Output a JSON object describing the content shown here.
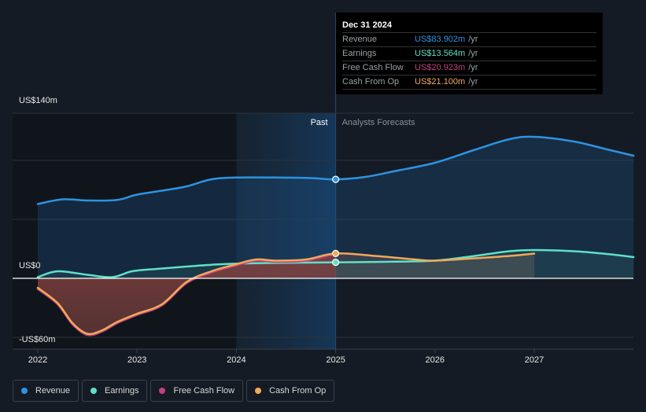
{
  "chart_data": {
    "type": "line",
    "title": "",
    "xlabel": "",
    "ylabel": "",
    "x_ticks": [
      "2022",
      "2023",
      "2024",
      "2025",
      "2026",
      "2027"
    ],
    "y_ticks": [
      {
        "value": 140,
        "label": "US$140m"
      },
      {
        "value": 0,
        "label": "US$0"
      },
      {
        "value": -60,
        "label": "-US$60m"
      }
    ],
    "ylim": [
      -60,
      140
    ],
    "xlim": [
      2022,
      2028
    ],
    "grid": true,
    "legend_position": "bottom-left",
    "past_label": "Past",
    "forecast_label": "Analysts Forecasts",
    "split_x": 2025,
    "highlight_start_x": 2024,
    "series": [
      {
        "name": "Revenue",
        "color": "#2e93e0",
        "points": [
          [
            2022.0,
            63
          ],
          [
            2022.25,
            67
          ],
          [
            2022.5,
            66
          ],
          [
            2022.8,
            66.5
          ],
          [
            2023.0,
            71
          ],
          [
            2023.3,
            75
          ],
          [
            2023.5,
            78
          ],
          [
            2023.75,
            84
          ],
          [
            2024.0,
            85.5
          ],
          [
            2024.4,
            85.5
          ],
          [
            2024.75,
            85
          ],
          [
            2025.0,
            83.9
          ],
          [
            2025.3,
            86
          ],
          [
            2025.6,
            91
          ],
          [
            2026.0,
            98
          ],
          [
            2026.4,
            109
          ],
          [
            2026.75,
            118
          ],
          [
            2027.0,
            120
          ],
          [
            2027.4,
            116
          ],
          [
            2027.75,
            109
          ],
          [
            2028.0,
            104
          ]
        ]
      },
      {
        "name": "Earnings",
        "color": "#5fe0c8",
        "points": [
          [
            2022.0,
            1
          ],
          [
            2022.2,
            6
          ],
          [
            2022.5,
            3
          ],
          [
            2022.75,
            1
          ],
          [
            2022.95,
            6
          ],
          [
            2023.2,
            8
          ],
          [
            2023.5,
            10
          ],
          [
            2023.75,
            11.5
          ],
          [
            2024.0,
            12.5
          ],
          [
            2024.5,
            13.2
          ],
          [
            2025.0,
            13.564
          ],
          [
            2025.5,
            14
          ],
          [
            2026.0,
            15
          ],
          [
            2026.4,
            19
          ],
          [
            2026.75,
            23
          ],
          [
            2027.0,
            24
          ],
          [
            2027.4,
            23
          ],
          [
            2027.75,
            20.5
          ],
          [
            2028.0,
            18
          ]
        ]
      },
      {
        "name": "Free Cash Flow",
        "color": "#c2407f",
        "points": [
          [
            2022.0,
            -9
          ],
          [
            2022.2,
            -22
          ],
          [
            2022.35,
            -39
          ],
          [
            2022.5,
            -48
          ],
          [
            2022.65,
            -45
          ],
          [
            2022.8,
            -38
          ],
          [
            2023.0,
            -31
          ],
          [
            2023.25,
            -23
          ],
          [
            2023.5,
            -4
          ],
          [
            2023.75,
            5
          ],
          [
            2024.0,
            11
          ],
          [
            2024.2,
            15
          ],
          [
            2024.4,
            14
          ],
          [
            2024.7,
            15
          ],
          [
            2025.0,
            20.923
          ]
        ]
      },
      {
        "name": "Cash From Op",
        "color": "#f0a95a",
        "points": [
          [
            2022.0,
            -8
          ],
          [
            2022.2,
            -21
          ],
          [
            2022.35,
            -38
          ],
          [
            2022.5,
            -47
          ],
          [
            2022.65,
            -44
          ],
          [
            2022.8,
            -37
          ],
          [
            2023.0,
            -30
          ],
          [
            2023.25,
            -22
          ],
          [
            2023.5,
            -3
          ],
          [
            2023.75,
            6
          ],
          [
            2024.0,
            12
          ],
          [
            2024.2,
            16
          ],
          [
            2024.4,
            15
          ],
          [
            2024.7,
            16
          ],
          [
            2025.0,
            21.1
          ],
          [
            2025.4,
            19
          ],
          [
            2025.8,
            16
          ],
          [
            2026.0,
            15
          ],
          [
            2026.4,
            17
          ],
          [
            2026.75,
            19
          ],
          [
            2027.0,
            21
          ]
        ]
      }
    ]
  },
  "tooltip": {
    "date": "Dec 31 2024",
    "rows": [
      {
        "name": "Revenue",
        "value": "US$83.902m",
        "unit": "/yr",
        "color": "#2e93e0"
      },
      {
        "name": "Earnings",
        "value": "US$13.564m",
        "unit": "/yr",
        "color": "#5fe0c8"
      },
      {
        "name": "Free Cash Flow",
        "value": "US$20.923m",
        "unit": "/yr",
        "color": "#c2407f"
      },
      {
        "name": "Cash From Op",
        "value": "US$21.100m",
        "unit": "/yr",
        "color": "#f0a95a"
      }
    ]
  },
  "legend": [
    {
      "label": "Revenue",
      "color": "#2e93e0"
    },
    {
      "label": "Earnings",
      "color": "#5fe0c8"
    },
    {
      "label": "Free Cash Flow",
      "color": "#c2407f"
    },
    {
      "label": "Cash From Op",
      "color": "#f0a95a"
    }
  ]
}
